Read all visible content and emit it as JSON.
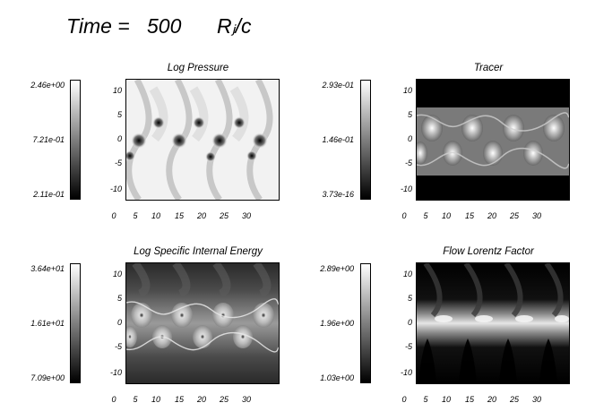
{
  "header": {
    "time_label": "Time =",
    "time_value": "500",
    "time_unit": "Rⱼ/c"
  },
  "panels": [
    {
      "title": "Log Pressure",
      "colorbar": {
        "max": "2.46e+00",
        "mid": "7.21e-01",
        "min": "2.11e-01"
      },
      "field": "pressure"
    },
    {
      "title": "Tracer",
      "colorbar": {
        "max": "2.93e-01",
        "mid": "1.46e-01",
        "min": "3.73e-16"
      },
      "field": "tracer"
    },
    {
      "title": "Log Specific Internal Energy",
      "colorbar": {
        "max": "3.64e+01",
        "mid": "1.61e+01",
        "min": "7.09e+00"
      },
      "field": "energy"
    },
    {
      "title": "Flow Lorentz Factor",
      "colorbar": {
        "max": "2.89e+00",
        "mid": "1.96e+00",
        "min": "1.03e+00"
      },
      "field": "lorentz"
    }
  ],
  "axes": {
    "y_ticks": [
      "10",
      "5",
      "0",
      "-5",
      "-10"
    ],
    "x_ticks": [
      "0",
      "5",
      "10",
      "15",
      "20",
      "25",
      "30"
    ]
  },
  "colors": {
    "background": "#ffffff",
    "colormap": "grayscale"
  }
}
